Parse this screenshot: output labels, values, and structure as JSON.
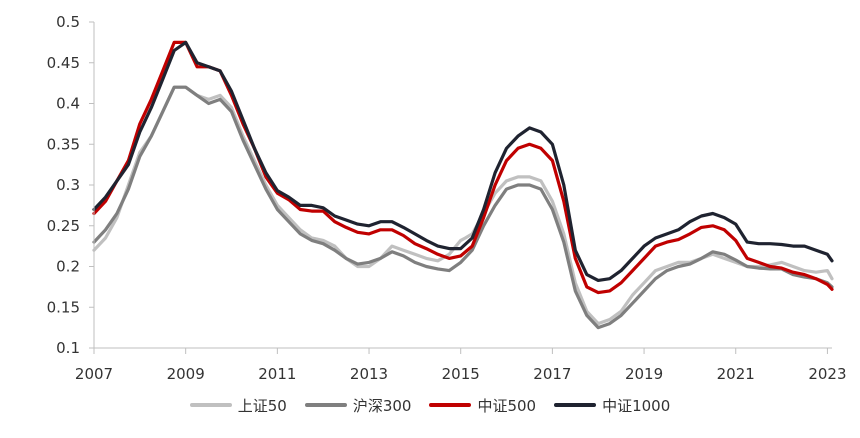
{
  "chart_data": {
    "type": "line",
    "title": "",
    "xlabel": "",
    "ylabel": "",
    "xlim": [
      2007,
      2023.1
    ],
    "ylim": [
      0.1,
      0.5
    ],
    "x_ticks": [
      "2007",
      "2009",
      "2011",
      "2013",
      "2015",
      "2017",
      "2019",
      "2021",
      "2023"
    ],
    "y_ticks": [
      "0.1",
      "0.15",
      "0.2",
      "0.25",
      "0.3",
      "0.35",
      "0.4",
      "0.45",
      "0.5"
    ],
    "grid": false,
    "legend_position": "bottom",
    "series": [
      {
        "name": "上证50",
        "color": "#c0c0c0",
        "points": [
          [
            2007,
            0.22
          ],
          [
            2007.25,
            0.235
          ],
          [
            2007.5,
            0.26
          ],
          [
            2007.75,
            0.3
          ],
          [
            2008,
            0.34
          ],
          [
            2008.25,
            0.36
          ],
          [
            2008.5,
            0.39
          ],
          [
            2008.75,
            0.42
          ],
          [
            2009,
            0.42
          ],
          [
            2009.25,
            0.41
          ],
          [
            2009.5,
            0.405
          ],
          [
            2009.75,
            0.41
          ],
          [
            2010,
            0.395
          ],
          [
            2010.25,
            0.36
          ],
          [
            2010.5,
            0.33
          ],
          [
            2010.75,
            0.3
          ],
          [
            2011,
            0.275
          ],
          [
            2011.25,
            0.26
          ],
          [
            2011.5,
            0.245
          ],
          [
            2011.75,
            0.235
          ],
          [
            2012,
            0.232
          ],
          [
            2012.25,
            0.225
          ],
          [
            2012.5,
            0.21
          ],
          [
            2012.75,
            0.2
          ],
          [
            2013,
            0.2
          ],
          [
            2013.25,
            0.21
          ],
          [
            2013.5,
            0.225
          ],
          [
            2013.75,
            0.22
          ],
          [
            2014,
            0.215
          ],
          [
            2014.25,
            0.21
          ],
          [
            2014.5,
            0.207
          ],
          [
            2014.75,
            0.215
          ],
          [
            2015,
            0.232
          ],
          [
            2015.1,
            0.235
          ],
          [
            2015.25,
            0.24
          ],
          [
            2015.5,
            0.265
          ],
          [
            2015.75,
            0.29
          ],
          [
            2016,
            0.305
          ],
          [
            2016.25,
            0.31
          ],
          [
            2016.5,
            0.31
          ],
          [
            2016.75,
            0.305
          ],
          [
            2017,
            0.28
          ],
          [
            2017.25,
            0.24
          ],
          [
            2017.5,
            0.18
          ],
          [
            2017.75,
            0.145
          ],
          [
            2018,
            0.13
          ],
          [
            2018.25,
            0.135
          ],
          [
            2018.5,
            0.145
          ],
          [
            2018.75,
            0.165
          ],
          [
            2019,
            0.18
          ],
          [
            2019.25,
            0.195
          ],
          [
            2019.5,
            0.2
          ],
          [
            2019.75,
            0.205
          ],
          [
            2020,
            0.205
          ],
          [
            2020.25,
            0.21
          ],
          [
            2020.5,
            0.215
          ],
          [
            2020.75,
            0.21
          ],
          [
            2021,
            0.205
          ],
          [
            2021.25,
            0.2
          ],
          [
            2021.5,
            0.2
          ],
          [
            2021.75,
            0.202
          ],
          [
            2022,
            0.205
          ],
          [
            2022.25,
            0.2
          ],
          [
            2022.5,
            0.195
          ],
          [
            2022.75,
            0.193
          ],
          [
            2023,
            0.195
          ],
          [
            2023.1,
            0.185
          ]
        ]
      },
      {
        "name": "沪深300",
        "color": "#7f7f7f",
        "points": [
          [
            2007,
            0.23
          ],
          [
            2007.25,
            0.245
          ],
          [
            2007.5,
            0.265
          ],
          [
            2007.75,
            0.295
          ],
          [
            2008,
            0.335
          ],
          [
            2008.25,
            0.36
          ],
          [
            2008.5,
            0.39
          ],
          [
            2008.75,
            0.42
          ],
          [
            2009,
            0.42
          ],
          [
            2009.25,
            0.41
          ],
          [
            2009.5,
            0.4
          ],
          [
            2009.75,
            0.405
          ],
          [
            2010,
            0.39
          ],
          [
            2010.25,
            0.355
          ],
          [
            2010.5,
            0.325
          ],
          [
            2010.75,
            0.295
          ],
          [
            2011,
            0.27
          ],
          [
            2011.25,
            0.255
          ],
          [
            2011.5,
            0.24
          ],
          [
            2011.75,
            0.232
          ],
          [
            2012,
            0.228
          ],
          [
            2012.25,
            0.22
          ],
          [
            2012.5,
            0.21
          ],
          [
            2012.75,
            0.203
          ],
          [
            2013,
            0.205
          ],
          [
            2013.25,
            0.21
          ],
          [
            2013.5,
            0.218
          ],
          [
            2013.75,
            0.213
          ],
          [
            2014,
            0.205
          ],
          [
            2014.25,
            0.2
          ],
          [
            2014.5,
            0.197
          ],
          [
            2014.75,
            0.195
          ],
          [
            2015,
            0.205
          ],
          [
            2015.25,
            0.22
          ],
          [
            2015.5,
            0.25
          ],
          [
            2015.75,
            0.275
          ],
          [
            2016,
            0.295
          ],
          [
            2016.25,
            0.3
          ],
          [
            2016.5,
            0.3
          ],
          [
            2016.75,
            0.295
          ],
          [
            2017,
            0.27
          ],
          [
            2017.25,
            0.23
          ],
          [
            2017.5,
            0.17
          ],
          [
            2017.75,
            0.14
          ],
          [
            2018,
            0.125
          ],
          [
            2018.25,
            0.13
          ],
          [
            2018.5,
            0.14
          ],
          [
            2018.75,
            0.155
          ],
          [
            2019,
            0.17
          ],
          [
            2019.25,
            0.185
          ],
          [
            2019.5,
            0.195
          ],
          [
            2019.75,
            0.2
          ],
          [
            2020,
            0.203
          ],
          [
            2020.25,
            0.21
          ],
          [
            2020.5,
            0.218
          ],
          [
            2020.75,
            0.215
          ],
          [
            2021,
            0.208
          ],
          [
            2021.25,
            0.2
          ],
          [
            2021.5,
            0.198
          ],
          [
            2021.75,
            0.197
          ],
          [
            2022,
            0.197
          ],
          [
            2022.25,
            0.19
          ],
          [
            2022.5,
            0.187
          ],
          [
            2022.75,
            0.185
          ],
          [
            2023,
            0.18
          ],
          [
            2023.1,
            0.175
          ]
        ]
      },
      {
        "name": "中证500",
        "color": "#c00000",
        "points": [
          [
            2007,
            0.265
          ],
          [
            2007.25,
            0.28
          ],
          [
            2007.5,
            0.305
          ],
          [
            2007.75,
            0.33
          ],
          [
            2008,
            0.375
          ],
          [
            2008.25,
            0.405
          ],
          [
            2008.5,
            0.44
          ],
          [
            2008.75,
            0.475
          ],
          [
            2009,
            0.475
          ],
          [
            2009.25,
            0.445
          ],
          [
            2009.5,
            0.445
          ],
          [
            2009.75,
            0.44
          ],
          [
            2010,
            0.41
          ],
          [
            2010.25,
            0.375
          ],
          [
            2010.5,
            0.345
          ],
          [
            2010.75,
            0.31
          ],
          [
            2011,
            0.29
          ],
          [
            2011.25,
            0.282
          ],
          [
            2011.5,
            0.27
          ],
          [
            2011.75,
            0.268
          ],
          [
            2012,
            0.268
          ],
          [
            2012.25,
            0.255
          ],
          [
            2012.5,
            0.248
          ],
          [
            2012.75,
            0.242
          ],
          [
            2013,
            0.24
          ],
          [
            2013.25,
            0.245
          ],
          [
            2013.5,
            0.245
          ],
          [
            2013.75,
            0.238
          ],
          [
            2014,
            0.228
          ],
          [
            2014.25,
            0.222
          ],
          [
            2014.5,
            0.215
          ],
          [
            2014.75,
            0.21
          ],
          [
            2015,
            0.213
          ],
          [
            2015.25,
            0.225
          ],
          [
            2015.5,
            0.26
          ],
          [
            2015.75,
            0.3
          ],
          [
            2016,
            0.33
          ],
          [
            2016.25,
            0.345
          ],
          [
            2016.5,
            0.35
          ],
          [
            2016.75,
            0.345
          ],
          [
            2017,
            0.33
          ],
          [
            2017.25,
            0.28
          ],
          [
            2017.5,
            0.21
          ],
          [
            2017.75,
            0.175
          ],
          [
            2018,
            0.168
          ],
          [
            2018.25,
            0.17
          ],
          [
            2018.5,
            0.18
          ],
          [
            2018.75,
            0.195
          ],
          [
            2019,
            0.21
          ],
          [
            2019.25,
            0.225
          ],
          [
            2019.5,
            0.23
          ],
          [
            2019.75,
            0.233
          ],
          [
            2020,
            0.24
          ],
          [
            2020.25,
            0.248
          ],
          [
            2020.5,
            0.25
          ],
          [
            2020.75,
            0.245
          ],
          [
            2021,
            0.232
          ],
          [
            2021.25,
            0.21
          ],
          [
            2021.5,
            0.205
          ],
          [
            2021.75,
            0.2
          ],
          [
            2022,
            0.198
          ],
          [
            2022.25,
            0.193
          ],
          [
            2022.5,
            0.19
          ],
          [
            2022.75,
            0.185
          ],
          [
            2023,
            0.178
          ],
          [
            2023.1,
            0.172
          ]
        ]
      },
      {
        "name": "中证1000",
        "color": "#1f2330",
        "points": [
          [
            2007,
            0.27
          ],
          [
            2007.25,
            0.285
          ],
          [
            2007.5,
            0.305
          ],
          [
            2007.75,
            0.325
          ],
          [
            2008,
            0.365
          ],
          [
            2008.25,
            0.395
          ],
          [
            2008.5,
            0.43
          ],
          [
            2008.75,
            0.465
          ],
          [
            2009,
            0.475
          ],
          [
            2009.25,
            0.45
          ],
          [
            2009.5,
            0.445
          ],
          [
            2009.75,
            0.44
          ],
          [
            2010,
            0.415
          ],
          [
            2010.25,
            0.38
          ],
          [
            2010.5,
            0.345
          ],
          [
            2010.75,
            0.315
          ],
          [
            2011,
            0.293
          ],
          [
            2011.25,
            0.285
          ],
          [
            2011.5,
            0.275
          ],
          [
            2011.75,
            0.275
          ],
          [
            2012,
            0.272
          ],
          [
            2012.25,
            0.262
          ],
          [
            2012.5,
            0.257
          ],
          [
            2012.75,
            0.252
          ],
          [
            2013,
            0.25
          ],
          [
            2013.25,
            0.255
          ],
          [
            2013.5,
            0.255
          ],
          [
            2013.75,
            0.248
          ],
          [
            2014,
            0.24
          ],
          [
            2014.25,
            0.232
          ],
          [
            2014.5,
            0.225
          ],
          [
            2014.75,
            0.222
          ],
          [
            2015,
            0.222
          ],
          [
            2015.25,
            0.235
          ],
          [
            2015.5,
            0.27
          ],
          [
            2015.75,
            0.315
          ],
          [
            2016,
            0.345
          ],
          [
            2016.25,
            0.36
          ],
          [
            2016.5,
            0.37
          ],
          [
            2016.75,
            0.365
          ],
          [
            2017,
            0.35
          ],
          [
            2017.25,
            0.3
          ],
          [
            2017.5,
            0.22
          ],
          [
            2017.75,
            0.19
          ],
          [
            2018,
            0.183
          ],
          [
            2018.25,
            0.185
          ],
          [
            2018.5,
            0.195
          ],
          [
            2018.75,
            0.21
          ],
          [
            2019,
            0.225
          ],
          [
            2019.25,
            0.235
          ],
          [
            2019.5,
            0.24
          ],
          [
            2019.75,
            0.245
          ],
          [
            2020,
            0.255
          ],
          [
            2020.25,
            0.262
          ],
          [
            2020.5,
            0.265
          ],
          [
            2020.75,
            0.26
          ],
          [
            2021,
            0.252
          ],
          [
            2021.25,
            0.23
          ],
          [
            2021.5,
            0.228
          ],
          [
            2021.75,
            0.228
          ],
          [
            2022,
            0.227
          ],
          [
            2022.25,
            0.225
          ],
          [
            2022.5,
            0.225
          ],
          [
            2022.75,
            0.22
          ],
          [
            2023,
            0.215
          ],
          [
            2023.1,
            0.207
          ]
        ]
      }
    ]
  }
}
